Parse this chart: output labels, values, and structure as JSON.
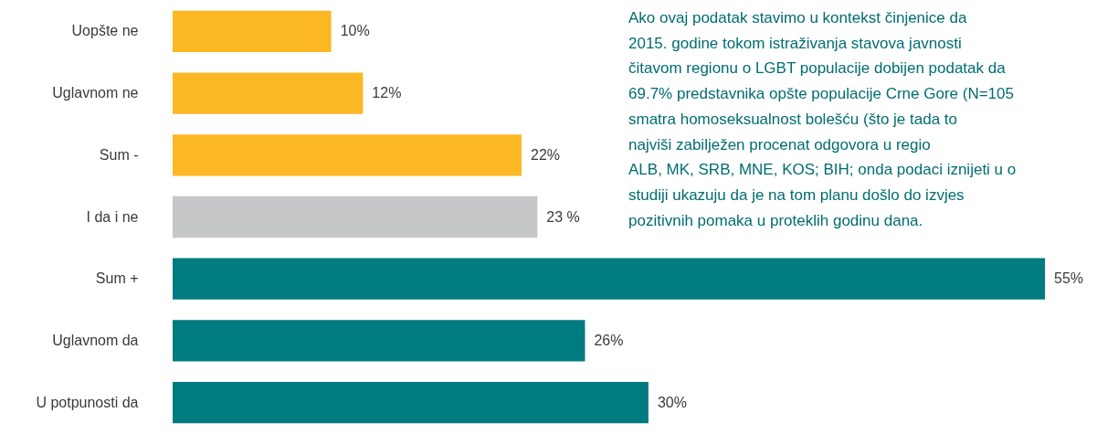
{
  "chart_data": {
    "type": "bar",
    "orientation": "horizontal",
    "categories": [
      "Uopšte ne",
      "Uglavnom ne",
      "Sum  -",
      "I da i ne",
      "Sum +",
      "Uglavnom da",
      "U potpunosti da"
    ],
    "values": [
      10,
      12,
      22,
      23,
      55,
      26,
      30
    ],
    "colors": [
      "#fbb823",
      "#fbb823",
      "#fbb823",
      "#c6c7c9",
      "#007b80",
      "#007b80",
      "#007b80"
    ],
    "value_labels": [
      "10%",
      "12%",
      "22%",
      "23 %",
      "55%",
      "26%",
      "30%"
    ],
    "tick_labels": "y",
    "annotations": [
      "Ako ovaj podatak  stavimo u kontekst činjenice da\n2015. godine tokom istraživanja stavova javnosti\nčitavom regionu o LGBT populacije dobijen podatak da\n69.7% predstavnika opšte populacije Crne Gore (N=105\nsmatra homoseksualnost bolešću (što je tada to\nnajviši zabilježen procenat odgovora u regio\nALB, MK, SRB, MNE, KOS; BIH; onda podaci iznijeti u o\nstudiji ukazuju da je na tom planu došlo do izvjes\npozitivnih pomaka u proteklih godinu dana."
    ]
  }
}
